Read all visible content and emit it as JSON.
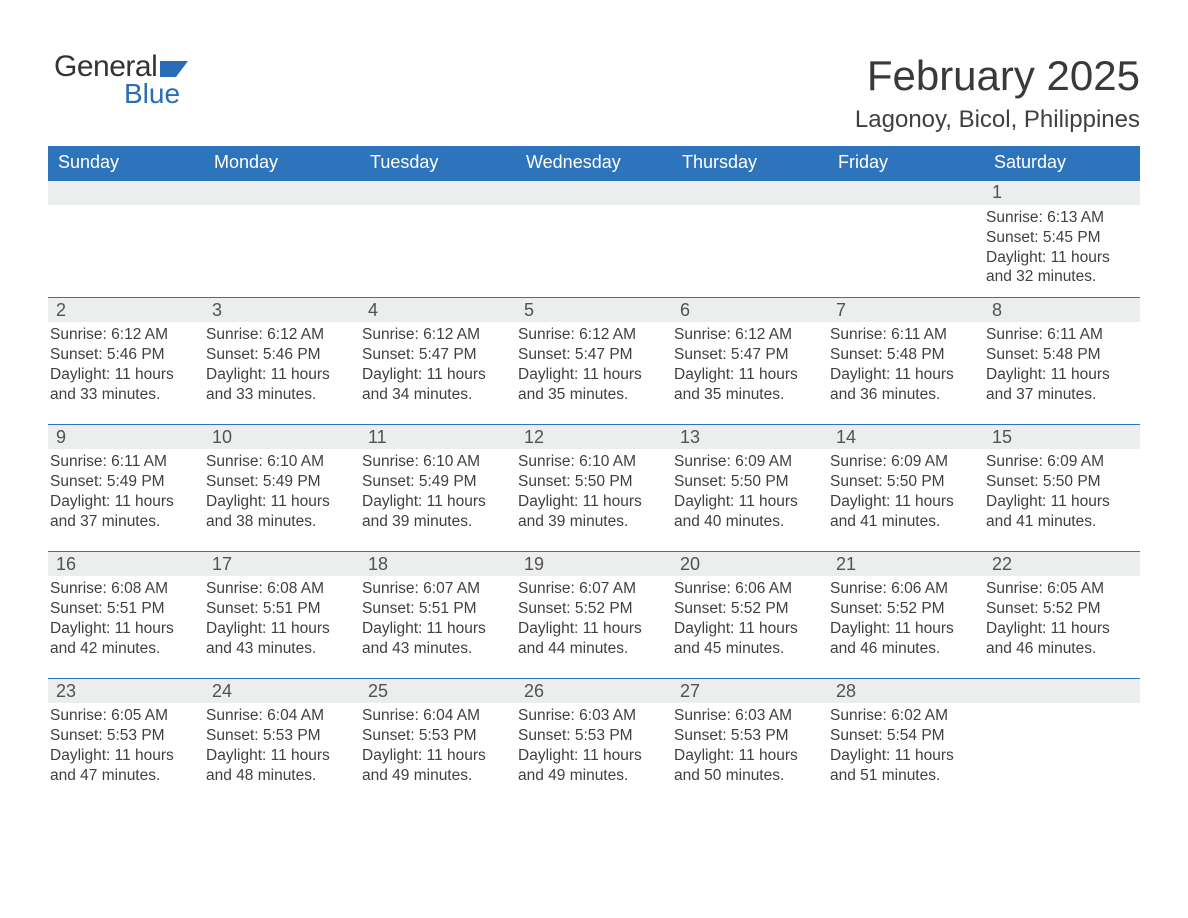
{
  "brand": {
    "line1": "General",
    "line2": "Blue"
  },
  "title": "February 2025",
  "location": "Lagonoy, Bicol, Philippines",
  "colors": {
    "header_bg": "#2d74bc",
    "header_fg": "#ffffff",
    "daybar_bg": "#eceded",
    "text": "#404040",
    "rule": "#2d74bc",
    "brand_blue": "#2a6db6"
  },
  "days_of_week": [
    "Sunday",
    "Monday",
    "Tuesday",
    "Wednesday",
    "Thursday",
    "Friday",
    "Saturday"
  ],
  "weeks": [
    [
      {
        "n": "",
        "sunrise": "",
        "sunset": "",
        "daylight1": "",
        "daylight2": ""
      },
      {
        "n": "",
        "sunrise": "",
        "sunset": "",
        "daylight1": "",
        "daylight2": ""
      },
      {
        "n": "",
        "sunrise": "",
        "sunset": "",
        "daylight1": "",
        "daylight2": ""
      },
      {
        "n": "",
        "sunrise": "",
        "sunset": "",
        "daylight1": "",
        "daylight2": ""
      },
      {
        "n": "",
        "sunrise": "",
        "sunset": "",
        "daylight1": "",
        "daylight2": ""
      },
      {
        "n": "",
        "sunrise": "",
        "sunset": "",
        "daylight1": "",
        "daylight2": ""
      },
      {
        "n": "1",
        "sunrise": "Sunrise: 6:13 AM",
        "sunset": "Sunset: 5:45 PM",
        "daylight1": "Daylight: 11 hours",
        "daylight2": "and 32 minutes."
      }
    ],
    [
      {
        "n": "2",
        "sunrise": "Sunrise: 6:12 AM",
        "sunset": "Sunset: 5:46 PM",
        "daylight1": "Daylight: 11 hours",
        "daylight2": "and 33 minutes."
      },
      {
        "n": "3",
        "sunrise": "Sunrise: 6:12 AM",
        "sunset": "Sunset: 5:46 PM",
        "daylight1": "Daylight: 11 hours",
        "daylight2": "and 33 minutes."
      },
      {
        "n": "4",
        "sunrise": "Sunrise: 6:12 AM",
        "sunset": "Sunset: 5:47 PM",
        "daylight1": "Daylight: 11 hours",
        "daylight2": "and 34 minutes."
      },
      {
        "n": "5",
        "sunrise": "Sunrise: 6:12 AM",
        "sunset": "Sunset: 5:47 PM",
        "daylight1": "Daylight: 11 hours",
        "daylight2": "and 35 minutes."
      },
      {
        "n": "6",
        "sunrise": "Sunrise: 6:12 AM",
        "sunset": "Sunset: 5:47 PM",
        "daylight1": "Daylight: 11 hours",
        "daylight2": "and 35 minutes."
      },
      {
        "n": "7",
        "sunrise": "Sunrise: 6:11 AM",
        "sunset": "Sunset: 5:48 PM",
        "daylight1": "Daylight: 11 hours",
        "daylight2": "and 36 minutes."
      },
      {
        "n": "8",
        "sunrise": "Sunrise: 6:11 AM",
        "sunset": "Sunset: 5:48 PM",
        "daylight1": "Daylight: 11 hours",
        "daylight2": "and 37 minutes."
      }
    ],
    [
      {
        "n": "9",
        "sunrise": "Sunrise: 6:11 AM",
        "sunset": "Sunset: 5:49 PM",
        "daylight1": "Daylight: 11 hours",
        "daylight2": "and 37 minutes."
      },
      {
        "n": "10",
        "sunrise": "Sunrise: 6:10 AM",
        "sunset": "Sunset: 5:49 PM",
        "daylight1": "Daylight: 11 hours",
        "daylight2": "and 38 minutes."
      },
      {
        "n": "11",
        "sunrise": "Sunrise: 6:10 AM",
        "sunset": "Sunset: 5:49 PM",
        "daylight1": "Daylight: 11 hours",
        "daylight2": "and 39 minutes."
      },
      {
        "n": "12",
        "sunrise": "Sunrise: 6:10 AM",
        "sunset": "Sunset: 5:50 PM",
        "daylight1": "Daylight: 11 hours",
        "daylight2": "and 39 minutes."
      },
      {
        "n": "13",
        "sunrise": "Sunrise: 6:09 AM",
        "sunset": "Sunset: 5:50 PM",
        "daylight1": "Daylight: 11 hours",
        "daylight2": "and 40 minutes."
      },
      {
        "n": "14",
        "sunrise": "Sunrise: 6:09 AM",
        "sunset": "Sunset: 5:50 PM",
        "daylight1": "Daylight: 11 hours",
        "daylight2": "and 41 minutes."
      },
      {
        "n": "15",
        "sunrise": "Sunrise: 6:09 AM",
        "sunset": "Sunset: 5:50 PM",
        "daylight1": "Daylight: 11 hours",
        "daylight2": "and 41 minutes."
      }
    ],
    [
      {
        "n": "16",
        "sunrise": "Sunrise: 6:08 AM",
        "sunset": "Sunset: 5:51 PM",
        "daylight1": "Daylight: 11 hours",
        "daylight2": "and 42 minutes."
      },
      {
        "n": "17",
        "sunrise": "Sunrise: 6:08 AM",
        "sunset": "Sunset: 5:51 PM",
        "daylight1": "Daylight: 11 hours",
        "daylight2": "and 43 minutes."
      },
      {
        "n": "18",
        "sunrise": "Sunrise: 6:07 AM",
        "sunset": "Sunset: 5:51 PM",
        "daylight1": "Daylight: 11 hours",
        "daylight2": "and 43 minutes."
      },
      {
        "n": "19",
        "sunrise": "Sunrise: 6:07 AM",
        "sunset": "Sunset: 5:52 PM",
        "daylight1": "Daylight: 11 hours",
        "daylight2": "and 44 minutes."
      },
      {
        "n": "20",
        "sunrise": "Sunrise: 6:06 AM",
        "sunset": "Sunset: 5:52 PM",
        "daylight1": "Daylight: 11 hours",
        "daylight2": "and 45 minutes."
      },
      {
        "n": "21",
        "sunrise": "Sunrise: 6:06 AM",
        "sunset": "Sunset: 5:52 PM",
        "daylight1": "Daylight: 11 hours",
        "daylight2": "and 46 minutes."
      },
      {
        "n": "22",
        "sunrise": "Sunrise: 6:05 AM",
        "sunset": "Sunset: 5:52 PM",
        "daylight1": "Daylight: 11 hours",
        "daylight2": "and 46 minutes."
      }
    ],
    [
      {
        "n": "23",
        "sunrise": "Sunrise: 6:05 AM",
        "sunset": "Sunset: 5:53 PM",
        "daylight1": "Daylight: 11 hours",
        "daylight2": "and 47 minutes."
      },
      {
        "n": "24",
        "sunrise": "Sunrise: 6:04 AM",
        "sunset": "Sunset: 5:53 PM",
        "daylight1": "Daylight: 11 hours",
        "daylight2": "and 48 minutes."
      },
      {
        "n": "25",
        "sunrise": "Sunrise: 6:04 AM",
        "sunset": "Sunset: 5:53 PM",
        "daylight1": "Daylight: 11 hours",
        "daylight2": "and 49 minutes."
      },
      {
        "n": "26",
        "sunrise": "Sunrise: 6:03 AM",
        "sunset": "Sunset: 5:53 PM",
        "daylight1": "Daylight: 11 hours",
        "daylight2": "and 49 minutes."
      },
      {
        "n": "27",
        "sunrise": "Sunrise: 6:03 AM",
        "sunset": "Sunset: 5:53 PM",
        "daylight1": "Daylight: 11 hours",
        "daylight2": "and 50 minutes."
      },
      {
        "n": "28",
        "sunrise": "Sunrise: 6:02 AM",
        "sunset": "Sunset: 5:54 PM",
        "daylight1": "Daylight: 11 hours",
        "daylight2": "and 51 minutes."
      },
      {
        "n": "",
        "sunrise": "",
        "sunset": "",
        "daylight1": "",
        "daylight2": ""
      }
    ]
  ]
}
